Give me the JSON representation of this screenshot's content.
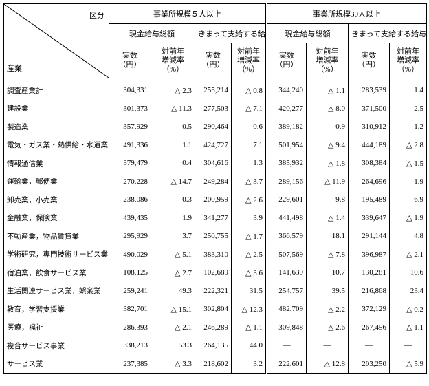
{
  "header": {
    "corner_top": "区分",
    "corner_bottom": "産業",
    "groups": [
      "事業所規模５人以上",
      "事業所規模30人以上"
    ],
    "subgroups": [
      "現金給与総額",
      "きまって支給する給与",
      "現金給与総額",
      "きまって支給する給与"
    ],
    "columns": [
      [
        "実数",
        "（円）"
      ],
      [
        "対前年",
        "増減率",
        "（%）"
      ],
      [
        "実数",
        "（円）"
      ],
      [
        "対前年",
        "増減率",
        "（%）"
      ],
      [
        "実数",
        "（円）"
      ],
      [
        "対前年",
        "増減率",
        "（%）"
      ],
      [
        "実数",
        "（円）"
      ],
      [
        "対前年",
        "増減率",
        "（%）"
      ]
    ]
  },
  "table": {
    "rows": [
      [
        "調査産業計",
        "304,331",
        "△ 2.3",
        "255,214",
        "△ 0.8",
        "344,240",
        "△ 1.1",
        "283,539",
        "1.4"
      ],
      [
        "建設業",
        "301,373",
        "△ 11.3",
        "277,503",
        "△ 7.1",
        "420,277",
        "△ 8.0",
        "371,500",
        "2.5"
      ],
      [
        "製造業",
        "357,929",
        "0.5",
        "290,464",
        "0.6",
        "389,182",
        "0.9",
        "310,912",
        "1.2"
      ],
      [
        "電気・ガス業・熱供給・水道業",
        "491,336",
        "1.1",
        "424,727",
        "7.1",
        "501,954",
        "△ 9.4",
        "444,189",
        "△ 2.8"
      ],
      [
        "情報通信業",
        "379,479",
        "0.4",
        "304,616",
        "1.3",
        "385,932",
        "△ 1.8",
        "308,384",
        "△ 1.5"
      ],
      [
        "運輸業，郵便業",
        "270,228",
        "△ 14.7",
        "249,284",
        "△ 3.7",
        "289,156",
        "△ 11.9",
        "264,696",
        "1.9"
      ],
      [
        "卸売業，小売業",
        "238,086",
        "0.3",
        "200,959",
        "△ 2.6",
        "229,601",
        "9.8",
        "195,489",
        "6.9"
      ],
      [
        "金融業，保険業",
        "439,435",
        "1.9",
        "341,277",
        "3.9",
        "441,498",
        "△ 1.4",
        "339,647",
        "△ 1.9"
      ],
      [
        "不動産業，物品賃貸業",
        "295,929",
        "3.7",
        "250,755",
        "△ 1.7",
        "366,579",
        "18.1",
        "291,144",
        "4.8"
      ],
      [
        "学術研究，専門技術サービス業",
        "490,029",
        "△ 5.1",
        "383,310",
        "△ 2.5",
        "507,569",
        "△ 7.8",
        "396,987",
        "△ 2.1"
      ],
      [
        "宿泊業，飲食サービス業",
        "108,125",
        "△ 2.7",
        "102,689",
        "△ 3.6",
        "141,639",
        "10.7",
        "130,281",
        "10.6"
      ],
      [
        "生活関連サービス業，娯楽業",
        "259,241",
        "49.3",
        "222,321",
        "31.5",
        "254,757",
        "39.5",
        "216,868",
        "23.4"
      ],
      [
        "教育，学習支援業",
        "382,701",
        "△ 15.1",
        "302,804",
        "△ 12.3",
        "482,709",
        "△ 2.2",
        "372,129",
        "△ 0.2"
      ],
      [
        "医療，福祉",
        "286,393",
        "△ 2.1",
        "246,289",
        "△ 1.1",
        "309,848",
        "△ 2.6",
        "267,456",
        "△ 1.1"
      ],
      [
        "複合サービス事業",
        "338,213",
        "53.3",
        "264,135",
        "44.0",
        "—",
        "—",
        "—",
        "—"
      ],
      [
        "サービス業",
        "237,385",
        "△ 3.3",
        "218,602",
        "3.2",
        "222,601",
        "△ 12.8",
        "203,250",
        "△ 5.9"
      ]
    ]
  }
}
